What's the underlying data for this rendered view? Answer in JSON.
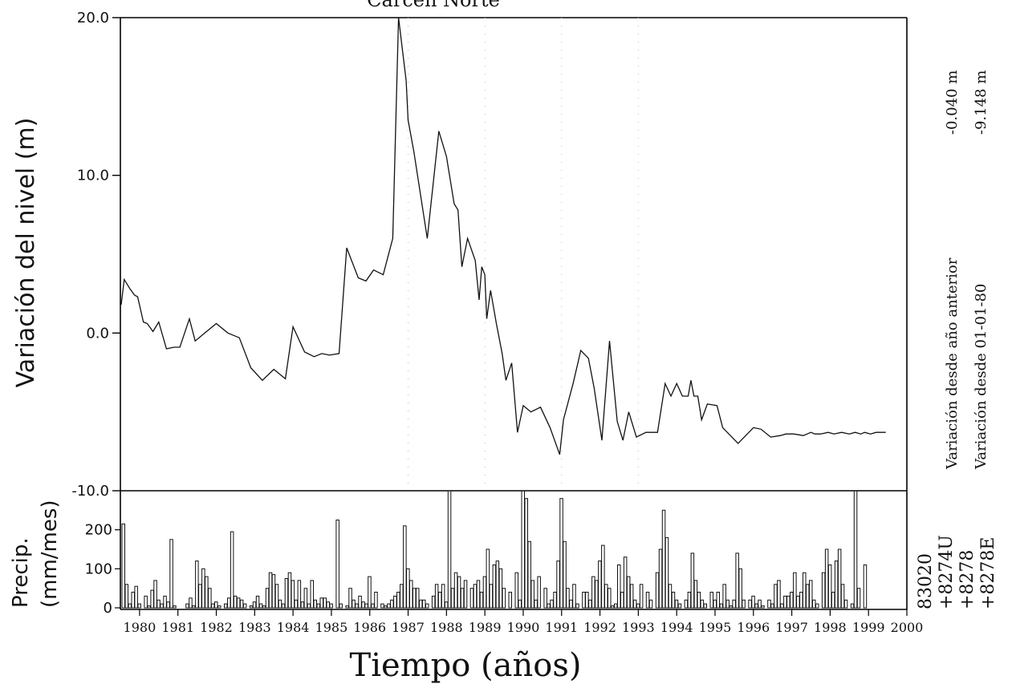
{
  "chart_data": {
    "type": "line",
    "title": "Carcen Norte",
    "ylabel": "Variación del nivel (m)",
    "xlabel": "Tiempo (años)",
    "ylim": [
      -10.0,
      20.0
    ],
    "xlim": [
      1979.5,
      2000.0
    ],
    "y_ticks": [
      "20.0",
      "10.0",
      "0.0",
      "-10.0"
    ],
    "y_tick_values": [
      20,
      10,
      0,
      -10
    ],
    "x_ticks": [
      "1980",
      "1981",
      "1982",
      "1983",
      "1984",
      "1985",
      "1986",
      "1987",
      "1988",
      "1989",
      "1990",
      "1991",
      "1992",
      "1993",
      "1994",
      "1995",
      "1996",
      "1997",
      "1998",
      "1999",
      "2000"
    ],
    "x_tick_values": [
      1980,
      1981,
      1982,
      1983,
      1984,
      1985,
      1986,
      1987,
      1988,
      1989,
      1990,
      1991,
      1992,
      1993,
      1994,
      1995,
      1996,
      1997,
      1998,
      1999,
      2000
    ],
    "grid": "dotted vertical at 1987, 1989, 1991, 1993",
    "series": [
      {
        "x": [
          1979.52,
          1979.6,
          1979.75,
          1979.87,
          1979.95,
          1980.1,
          1980.2,
          1980.35,
          1980.5,
          1980.7,
          1980.9,
          1981.05,
          1981.3,
          1981.45,
          1981.7,
          1982.0,
          1982.3,
          1982.6,
          1982.9,
          1983.2,
          1983.5,
          1983.8,
          1984.0,
          1984.3,
          1984.55,
          1984.75,
          1984.95,
          1985.2,
          1985.4,
          1985.7,
          1985.9,
          1986.1,
          1986.35,
          1986.6,
          1986.75,
          1986.95,
          1987.0,
          1987.15,
          1987.5,
          1987.8,
          1988.0,
          1988.2,
          1988.3,
          1988.4,
          1988.55,
          1988.75,
          1988.85,
          1988.92,
          1989.0,
          1989.05,
          1989.15,
          1989.3,
          1989.45,
          1989.55,
          1989.7,
          1989.85,
          1990.0,
          1990.2,
          1990.45,
          1990.7,
          1990.95,
          1991.05,
          1991.3,
          1991.5,
          1991.7,
          1991.85,
          1992.05,
          1992.25,
          1992.45,
          1992.6,
          1992.75,
          1992.95,
          1993.2,
          1993.5,
          1993.7,
          1993.85,
          1994.0,
          1994.15,
          1994.3,
          1994.37,
          1994.45,
          1994.55,
          1994.65,
          1994.8,
          1995.05,
          1995.2,
          1995.4,
          1995.6,
          1995.8,
          1996.0,
          1996.2,
          1996.45,
          1996.7,
          1996.85,
          1997.05,
          1997.3,
          1997.5,
          1997.6,
          1997.75,
          1997.95,
          1998.1,
          1998.3,
          1998.5,
          1998.65,
          1998.8,
          1998.9,
          1999.05,
          1999.2,
          1999.3,
          1999.45
        ],
        "values": [
          1.8,
          3.4,
          2.8,
          2.4,
          2.3,
          0.7,
          0.6,
          0.1,
          0.7,
          -1.0,
          -0.9,
          -0.9,
          0.9,
          -0.5,
          0.0,
          0.6,
          0.0,
          -0.3,
          -2.2,
          -3.0,
          -2.3,
          -2.9,
          0.4,
          -1.2,
          -1.5,
          -1.3,
          -1.4,
          -1.3,
          5.4,
          3.5,
          3.3,
          4.0,
          3.7,
          6.0,
          20.0,
          16.0,
          13.5,
          11.5,
          6.0,
          12.8,
          11.2,
          8.2,
          7.8,
          4.2,
          6.0,
          4.6,
          2.1,
          4.2,
          3.7,
          0.9,
          2.7,
          0.6,
          -1.3,
          -3.0,
          -1.9,
          -6.3,
          -4.6,
          -5.0,
          -4.7,
          -6.0,
          -7.7,
          -5.5,
          -3.2,
          -1.1,
          -1.6,
          -3.5,
          -6.8,
          -0.5,
          -5.6,
          -6.8,
          -5.0,
          -6.6,
          -6.3,
          -6.3,
          -3.2,
          -4.0,
          -3.2,
          -4.0,
          -4.0,
          -3.0,
          -4.0,
          -4.0,
          -5.5,
          -4.5,
          -4.6,
          -6.0,
          -6.5,
          -7.0,
          -6.5,
          -6.0,
          -6.1,
          -6.6,
          -6.5,
          -6.4,
          -6.4,
          -6.5,
          -6.3,
          -6.4,
          -6.4,
          -6.3,
          -6.4,
          -6.3,
          -6.4,
          -6.3,
          -6.4,
          -6.3,
          -6.4,
          -6.3,
          -6.3,
          -6.3
        ]
      }
    ],
    "precip": {
      "ylabel": "Precip. (mm/mes)",
      "y_ticks": [
        "200",
        "100",
        "0"
      ],
      "y_tick_values": [
        200,
        100,
        0
      ],
      "ylim": [
        0,
        300
      ],
      "monthly_values": [
        215,
        60,
        10,
        40,
        55,
        10,
        0,
        30,
        5,
        45,
        70,
        20,
        10,
        30,
        15,
        175,
        5,
        0,
        0,
        0,
        10,
        25,
        5,
        120,
        60,
        100,
        80,
        50,
        10,
        15,
        5,
        0,
        10,
        25,
        195,
        30,
        25,
        20,
        10,
        0,
        5,
        15,
        30,
        10,
        5,
        50,
        90,
        85,
        60,
        20,
        10,
        75,
        90,
        70,
        20,
        70,
        15,
        50,
        10,
        70,
        20,
        10,
        25,
        25,
        15,
        10,
        0,
        225,
        10,
        0,
        5,
        50,
        20,
        10,
        30,
        15,
        10,
        80,
        10,
        40,
        0,
        10,
        5,
        10,
        20,
        30,
        40,
        60,
        210,
        100,
        70,
        50,
        50,
        20,
        20,
        10,
        0,
        30,
        60,
        40,
        60,
        15,
        330,
        50,
        90,
        80,
        50,
        70,
        0,
        50,
        60,
        70,
        40,
        80,
        150,
        60,
        110,
        120,
        100,
        50,
        0,
        40,
        0,
        90,
        20,
        320,
        280,
        170,
        70,
        20,
        80,
        0,
        50,
        10,
        20,
        40,
        120,
        280,
        170,
        50,
        20,
        60,
        10,
        0,
        40,
        40,
        20,
        80,
        70,
        120,
        160,
        60,
        50,
        5,
        10,
        110,
        40,
        130,
        80,
        60,
        20,
        10,
        60,
        0,
        40,
        20,
        0,
        90,
        150,
        250,
        180,
        60,
        40,
        20,
        10,
        0,
        20,
        40,
        140,
        70,
        40,
        20,
        10,
        0,
        40,
        20,
        40,
        10,
        60,
        20,
        5,
        20,
        140,
        100,
        20,
        0,
        20,
        30,
        10,
        20,
        5,
        0,
        20,
        10,
        60,
        70,
        10,
        30,
        30,
        40,
        90,
        30,
        40,
        90,
        60,
        70,
        20,
        10,
        0,
        90,
        150,
        110,
        40,
        120,
        150,
        60,
        20,
        0,
        10,
        320,
        50,
        0,
        110
      ]
    },
    "side_texts": {
      "label_anterior": "Variación desde año anterior",
      "value_anterior": "-0.040 m",
      "label_origen": "Variación desde 01-01-80",
      "value_origen": "-9.148 m"
    },
    "stations": [
      "83020",
      "+8274U",
      "+8278",
      "+8278E"
    ]
  }
}
